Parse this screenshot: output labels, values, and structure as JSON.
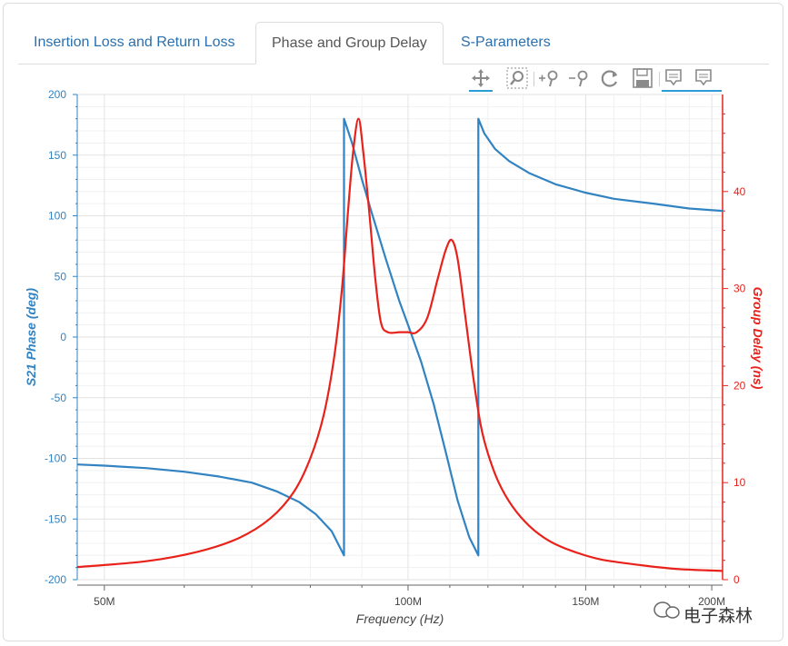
{
  "tabs": [
    {
      "label": "Insertion Loss and Return Loss",
      "active": false
    },
    {
      "label": "Phase and Group Delay",
      "active": true
    },
    {
      "label": "S-Parameters",
      "active": false
    }
  ],
  "toolbar": {
    "tools": [
      "pan-icon",
      "box-zoom-icon",
      "zoom-in-icon",
      "zoom-out-icon",
      "reset-icon",
      "save-icon",
      "hover-icon",
      "hover-icon"
    ]
  },
  "watermark": "电子森林",
  "chart_data": {
    "type": "line",
    "xlabel": "Frequency (Hz)",
    "x_tick_labels": [
      "50M",
      "100M",
      "150M",
      "200M"
    ],
    "x_scale": "log",
    "xlim_mhz": [
      47,
      205
    ],
    "y_left": {
      "label": "S21 Phase (deg)",
      "ylim": [
        -200,
        200
      ],
      "ticks": [
        -200,
        -150,
        -100,
        -50,
        0,
        50,
        100,
        150,
        200
      ],
      "color": "#3283c2"
    },
    "y_right": {
      "label": "Group Delay (ns)",
      "ylim": [
        0,
        50
      ],
      "ticks": [
        0,
        10,
        20,
        30,
        40
      ],
      "color": "#e8221b"
    },
    "grid": true,
    "series": [
      {
        "axis": "left",
        "color": "#3283c2",
        "points_mhz_deg": [
          [
            47,
            -105
          ],
          [
            50,
            -106
          ],
          [
            55,
            -108
          ],
          [
            60,
            -111
          ],
          [
            65,
            -115
          ],
          [
            70,
            -120
          ],
          [
            74,
            -127
          ],
          [
            78,
            -136
          ],
          [
            81,
            -146
          ],
          [
            84,
            -160
          ],
          [
            86.4,
            -180
          ],
          [
            86.4,
            180
          ],
          [
            88,
            160
          ],
          [
            90,
            130
          ],
          [
            92,
            103
          ],
          [
            95,
            65
          ],
          [
            98,
            30
          ],
          [
            100,
            10
          ],
          [
            103,
            -20
          ],
          [
            106,
            -55
          ],
          [
            109,
            -95
          ],
          [
            112,
            -135
          ],
          [
            115,
            -165
          ],
          [
            117.4,
            -180
          ],
          [
            117.4,
            180
          ],
          [
            119,
            168
          ],
          [
            122,
            155
          ],
          [
            126,
            145
          ],
          [
            132,
            135
          ],
          [
            140,
            126
          ],
          [
            150,
            119
          ],
          [
            160,
            114
          ],
          [
            175,
            110
          ],
          [
            190,
            106
          ],
          [
            205,
            104
          ]
        ]
      },
      {
        "axis": "right",
        "color": "#e8221b",
        "points_mhz_ns": [
          [
            47,
            1.3
          ],
          [
            55,
            1.9
          ],
          [
            62,
            2.9
          ],
          [
            68,
            4.3
          ],
          [
            73,
            6.3
          ],
          [
            77,
            9.0
          ],
          [
            80,
            12.5
          ],
          [
            82.5,
            17
          ],
          [
            84.5,
            23
          ],
          [
            86,
            30
          ],
          [
            87.2,
            38
          ],
          [
            88.2,
            44
          ],
          [
            89.3,
            47.5
          ],
          [
            90.3,
            44
          ],
          [
            91.5,
            38
          ],
          [
            92.8,
            31
          ],
          [
            94,
            26.5
          ],
          [
            95.5,
            25.5
          ],
          [
            98,
            25.5
          ],
          [
            100,
            25.5
          ],
          [
            102,
            25.5
          ],
          [
            104.5,
            27
          ],
          [
            107,
            31
          ],
          [
            109,
            34
          ],
          [
            110.5,
            35
          ],
          [
            112,
            33
          ],
          [
            114,
            27
          ],
          [
            116,
            21
          ],
          [
            118,
            16
          ],
          [
            120,
            13
          ],
          [
            123,
            10
          ],
          [
            127,
            7.5
          ],
          [
            132,
            5.5
          ],
          [
            138,
            4.0
          ],
          [
            145,
            3.0
          ],
          [
            155,
            2.1
          ],
          [
            170,
            1.5
          ],
          [
            185,
            1.1
          ],
          [
            205,
            0.9
          ]
        ]
      }
    ]
  }
}
